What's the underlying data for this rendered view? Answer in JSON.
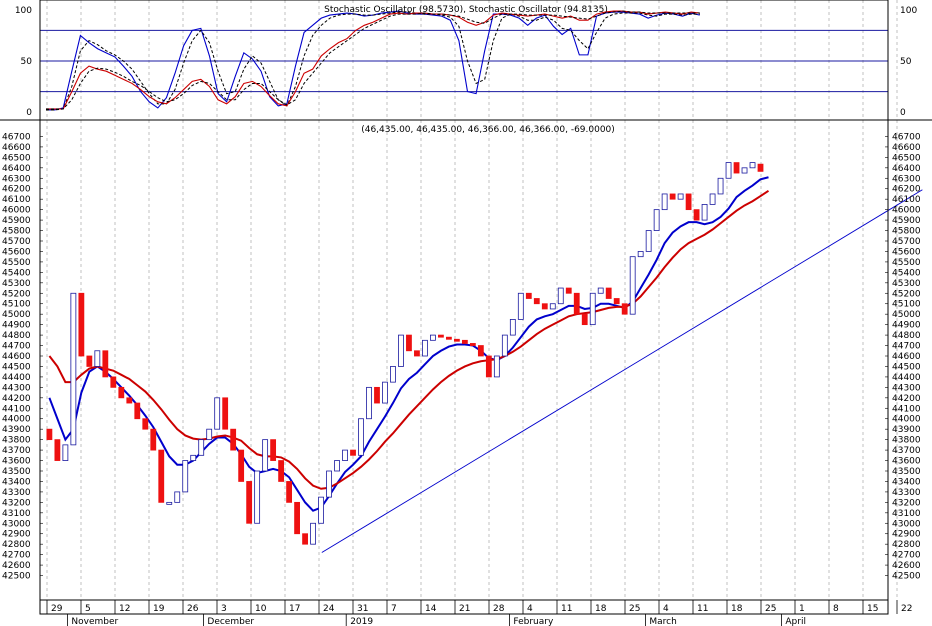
{
  "chart_data": [
    {
      "type": "line",
      "panel": "stochastic",
      "title": "Stochastic Oscillator (98.5730), Stochastic Oscillator (94.8135)",
      "ylim": [
        0,
        100
      ],
      "y_ticks": [
        0,
        50,
        100
      ],
      "reference_lines": [
        20,
        50,
        80
      ],
      "series": [
        {
          "color": "#0000cc",
          "style": "solid",
          "values": [
            2,
            2,
            4,
            40,
            75,
            68,
            62,
            58,
            54,
            45,
            35,
            20,
            10,
            4,
            14,
            38,
            65,
            80,
            82,
            55,
            18,
            10,
            35,
            58,
            52,
            40,
            15,
            6,
            8,
            45,
            78,
            85,
            92,
            95,
            96,
            97,
            96,
            94,
            95,
            97,
            98,
            99,
            97,
            96,
            96,
            95,
            94,
            90,
            70,
            20,
            18,
            60,
            96,
            96,
            95,
            92,
            85,
            92,
            95,
            84,
            76,
            82,
            56,
            56,
            94,
            97,
            98,
            98,
            97,
            96,
            92,
            95,
            97,
            96,
            94,
            97,
            95
          ]
        },
        {
          "color": "#000000",
          "style": "dashed",
          "values": [
            2,
            2,
            3,
            25,
            60,
            70,
            66,
            60,
            56,
            50,
            42,
            30,
            18,
            8,
            8,
            22,
            48,
            70,
            80,
            68,
            40,
            18,
            20,
            42,
            55,
            48,
            30,
            12,
            6,
            25,
            55,
            75,
            85,
            92,
            95,
            96,
            96,
            95,
            95,
            96,
            97,
            98,
            98,
            97,
            96,
            96,
            95,
            93,
            84,
            50,
            28,
            32,
            70,
            92,
            96,
            94,
            90,
            90,
            93,
            90,
            82,
            80,
            70,
            62,
            78,
            92,
            96,
            97,
            97,
            97,
            95,
            94,
            96,
            96,
            95,
            96,
            96
          ]
        },
        {
          "color": "#cc0000",
          "style": "solid",
          "values": [
            3,
            3,
            3,
            20,
            38,
            45,
            42,
            40,
            36,
            32,
            28,
            22,
            15,
            10,
            8,
            14,
            22,
            30,
            32,
            25,
            12,
            8,
            15,
            28,
            30,
            25,
            16,
            8,
            6,
            20,
            38,
            42,
            55,
            62,
            68,
            72,
            80,
            85,
            88,
            92,
            96,
            97,
            96,
            97,
            97,
            96,
            96,
            95,
            93,
            88,
            85,
            88,
            95,
            97,
            96,
            95,
            94,
            95,
            96,
            94,
            92,
            94,
            90,
            90,
            96,
            98,
            99,
            99,
            98,
            98,
            96,
            97,
            98,
            97,
            96,
            98,
            97
          ]
        },
        {
          "color": "#000000",
          "style": "dashed",
          "values": [
            3,
            3,
            3,
            12,
            28,
            40,
            43,
            42,
            39,
            35,
            30,
            26,
            20,
            14,
            10,
            12,
            18,
            26,
            30,
            28,
            20,
            12,
            12,
            22,
            28,
            28,
            20,
            12,
            7,
            12,
            28,
            38,
            48,
            58,
            64,
            70,
            76,
            82,
            86,
            90,
            94,
            96,
            96,
            96,
            97,
            96,
            96,
            95,
            94,
            91,
            88,
            87,
            92,
            96,
            96,
            96,
            95,
            95,
            95,
            95,
            94,
            93,
            92,
            91,
            94,
            97,
            98,
            99,
            98,
            98,
            97,
            97,
            97,
            97,
            97,
            97,
            97
          ]
        }
      ]
    },
    {
      "type": "candlestick",
      "panel": "price",
      "readout": "(46,435.00, 46,435.00, 46,366.00, 46,366.00, -69.0000)",
      "ylim": [
        42400,
        46800
      ],
      "y_ticks": [
        42500,
        42600,
        42700,
        42800,
        42900,
        43000,
        43100,
        43200,
        43300,
        43400,
        43500,
        43600,
        43700,
        43800,
        43900,
        44000,
        44100,
        44200,
        44300,
        44400,
        44500,
        44600,
        44700,
        44800,
        44900,
        45000,
        45100,
        45200,
        45300,
        45400,
        45500,
        45600,
        45700,
        45800,
        45900,
        46000,
        46100,
        46200,
        46300,
        46400,
        46500,
        46600,
        46700
      ],
      "x_tick_labels": [
        "29",
        "5",
        "12",
        "19",
        "26",
        "3",
        "10",
        "17",
        "24",
        "31",
        "7",
        "14",
        "21",
        "28",
        "4",
        "11",
        "18",
        "25",
        "4",
        "11",
        "18",
        "25",
        "1",
        "8",
        "15",
        "22"
      ],
      "x_tick_slots": [
        0,
        5,
        10,
        15,
        20,
        25,
        30,
        35,
        40,
        45,
        50,
        55,
        60,
        65,
        70,
        75,
        80,
        85,
        90,
        95,
        100,
        105,
        110,
        115,
        120,
        125
      ],
      "month_labels": [
        {
          "label": "November",
          "slot": 3
        },
        {
          "label": "December",
          "slot": 23
        },
        {
          "label": "2019",
          "slot": 44
        },
        {
          "label": "February",
          "slot": 68
        },
        {
          "label": "March",
          "slot": 88
        },
        {
          "label": "April",
          "slot": 108
        }
      ],
      "candles": [
        {
          "o": 43900,
          "c": 43800
        },
        {
          "o": 43800,
          "c": 43600
        },
        {
          "o": 43600,
          "c": 43750
        },
        {
          "o": 43750,
          "c": 45200
        },
        {
          "o": 45200,
          "c": 44600
        },
        {
          "o": 44600,
          "c": 44500
        },
        {
          "o": 44500,
          "c": 44650
        },
        {
          "o": 44650,
          "c": 44400
        },
        {
          "o": 44400,
          "c": 44300
        },
        {
          "o": 44300,
          "c": 44200
        },
        {
          "o": 44200,
          "c": 44150
        },
        {
          "o": 44150,
          "c": 44000
        },
        {
          "o": 44000,
          "c": 43900
        },
        {
          "o": 43900,
          "c": 43700
        },
        {
          "o": 43700,
          "c": 43200
        },
        {
          "o": 43200,
          "c": 43200
        },
        {
          "o": 43200,
          "c": 43300
        },
        {
          "o": 43300,
          "c": 43600
        },
        {
          "o": 43600,
          "c": 43650
        },
        {
          "o": 43650,
          "c": 43800
        },
        {
          "o": 43800,
          "c": 43900
        },
        {
          "o": 43900,
          "c": 44200
        },
        {
          "o": 44200,
          "c": 43900
        },
        {
          "o": 43900,
          "c": 43700
        },
        {
          "o": 43700,
          "c": 43400
        },
        {
          "o": 43400,
          "c": 43000
        },
        {
          "o": 43000,
          "c": 43500
        },
        {
          "o": 43500,
          "c": 43800
        },
        {
          "o": 43800,
          "c": 43600
        },
        {
          "o": 43600,
          "c": 43400
        },
        {
          "o": 43400,
          "c": 43200
        },
        {
          "o": 43200,
          "c": 42900
        },
        {
          "o": 42900,
          "c": 42800
        },
        {
          "o": 42800,
          "c": 43000
        },
        {
          "o": 43000,
          "c": 43250
        },
        {
          "o": 43250,
          "c": 43500
        },
        {
          "o": 43500,
          "c": 43600
        },
        {
          "o": 43600,
          "c": 43700
        },
        {
          "o": 43700,
          "c": 43650
        },
        {
          "o": 43650,
          "c": 44000
        },
        {
          "o": 44000,
          "c": 44300
        },
        {
          "o": 44300,
          "c": 44150
        },
        {
          "o": 44150,
          "c": 44350
        },
        {
          "o": 44350,
          "c": 44500
        },
        {
          "o": 44500,
          "c": 44800
        },
        {
          "o": 44800,
          "c": 44650
        },
        {
          "o": 44650,
          "c": 44600
        },
        {
          "o": 44600,
          "c": 44750
        },
        {
          "o": 44750,
          "c": 44800
        },
        {
          "o": 44800,
          "c": 44780
        },
        {
          "o": 44780,
          "c": 44760
        },
        {
          "o": 44760,
          "c": 44750
        },
        {
          "o": 44750,
          "c": 44720
        },
        {
          "o": 44720,
          "c": 44700
        },
        {
          "o": 44700,
          "c": 44600
        },
        {
          "o": 44600,
          "c": 44400
        },
        {
          "o": 44400,
          "c": 44600
        },
        {
          "o": 44600,
          "c": 44800
        },
        {
          "o": 44800,
          "c": 44950
        },
        {
          "o": 44950,
          "c": 45200
        },
        {
          "o": 45200,
          "c": 45150
        },
        {
          "o": 45150,
          "c": 45100
        },
        {
          "o": 45100,
          "c": 45050
        },
        {
          "o": 45050,
          "c": 45100
        },
        {
          "o": 45100,
          "c": 45250
        },
        {
          "o": 45250,
          "c": 45200
        },
        {
          "o": 45200,
          "c": 45000
        },
        {
          "o": 45000,
          "c": 44900
        },
        {
          "o": 44900,
          "c": 45200
        },
        {
          "o": 45200,
          "c": 45250
        },
        {
          "o": 45250,
          "c": 45150
        },
        {
          "o": 45150,
          "c": 45100
        },
        {
          "o": 45100,
          "c": 45000
        },
        {
          "o": 45000,
          "c": 45550
        },
        {
          "o": 45550,
          "c": 45600
        },
        {
          "o": 45600,
          "c": 45800
        },
        {
          "o": 45800,
          "c": 46000
        },
        {
          "o": 46000,
          "c": 46150
        },
        {
          "o": 46150,
          "c": 46100
        },
        {
          "o": 46100,
          "c": 46150
        },
        {
          "o": 46150,
          "c": 46000
        },
        {
          "o": 46000,
          "c": 45900
        },
        {
          "o": 45900,
          "c": 46050
        },
        {
          "o": 46050,
          "c": 46150
        },
        {
          "o": 46150,
          "c": 46300
        },
        {
          "o": 46300,
          "c": 46450
        },
        {
          "o": 46450,
          "c": 46350
        },
        {
          "o": 46350,
          "c": 46400
        },
        {
          "o": 46400,
          "c": 46450
        },
        {
          "o": 46435,
          "c": 46366
        }
      ],
      "candle_slot_offset": 0,
      "series": [
        {
          "color": "#0000cc",
          "values": [
            44200,
            44000,
            43800,
            43900,
            44250,
            44450,
            44500,
            44450,
            44380,
            44300,
            44220,
            44130,
            44030,
            43920,
            43780,
            43640,
            43560,
            43560,
            43600,
            43680,
            43760,
            43820,
            43820,
            43760,
            43660,
            43540,
            43480,
            43500,
            43520,
            43500,
            43440,
            43320,
            43200,
            43120,
            43150,
            43260,
            43380,
            43490,
            43560,
            43640,
            43780,
            43900,
            44020,
            44150,
            44290,
            44380,
            44440,
            44520,
            44600,
            44650,
            44690,
            44710,
            44710,
            44700,
            44650,
            44580,
            44560,
            44600,
            44680,
            44780,
            44880,
            44950,
            44980,
            45000,
            45040,
            45080,
            45080,
            45050,
            45060,
            45100,
            45100,
            45080,
            45060,
            45120,
            45250,
            45380,
            45520,
            45680,
            45780,
            45840,
            45880,
            45880,
            45860,
            45880,
            45930,
            46010,
            46120,
            46180,
            46230,
            46290,
            46310
          ]
        },
        {
          "color": "#cc0000",
          "values": [
            44600,
            44500,
            44350,
            44350,
            44420,
            44480,
            44500,
            44480,
            44460,
            44420,
            44380,
            44320,
            44260,
            44180,
            44090,
            43990,
            43900,
            43840,
            43810,
            43800,
            43810,
            43830,
            43840,
            43820,
            43790,
            43720,
            43660,
            43640,
            43640,
            43630,
            43590,
            43520,
            43430,
            43360,
            43330,
            43340,
            43380,
            43430,
            43480,
            43540,
            43610,
            43690,
            43780,
            43860,
            43950,
            44040,
            44120,
            44200,
            44280,
            44350,
            44410,
            44460,
            44500,
            44530,
            44550,
            44560,
            44570,
            44600,
            44640,
            44690,
            44750,
            44810,
            44860,
            44900,
            44940,
            44980,
            45000,
            45010,
            45020,
            45040,
            45060,
            45070,
            45070,
            45100,
            45170,
            45260,
            45350,
            45450,
            45540,
            45620,
            45680,
            45720,
            45760,
            45810,
            45870,
            45930,
            45990,
            46040,
            46080,
            46130,
            46180
          ]
        }
      ],
      "trendline": {
        "color": "#0000cc",
        "from": {
          "slot": 36,
          "value": 42720
        },
        "to": {
          "slot": 128,
          "value": 46190
        }
      }
    }
  ]
}
